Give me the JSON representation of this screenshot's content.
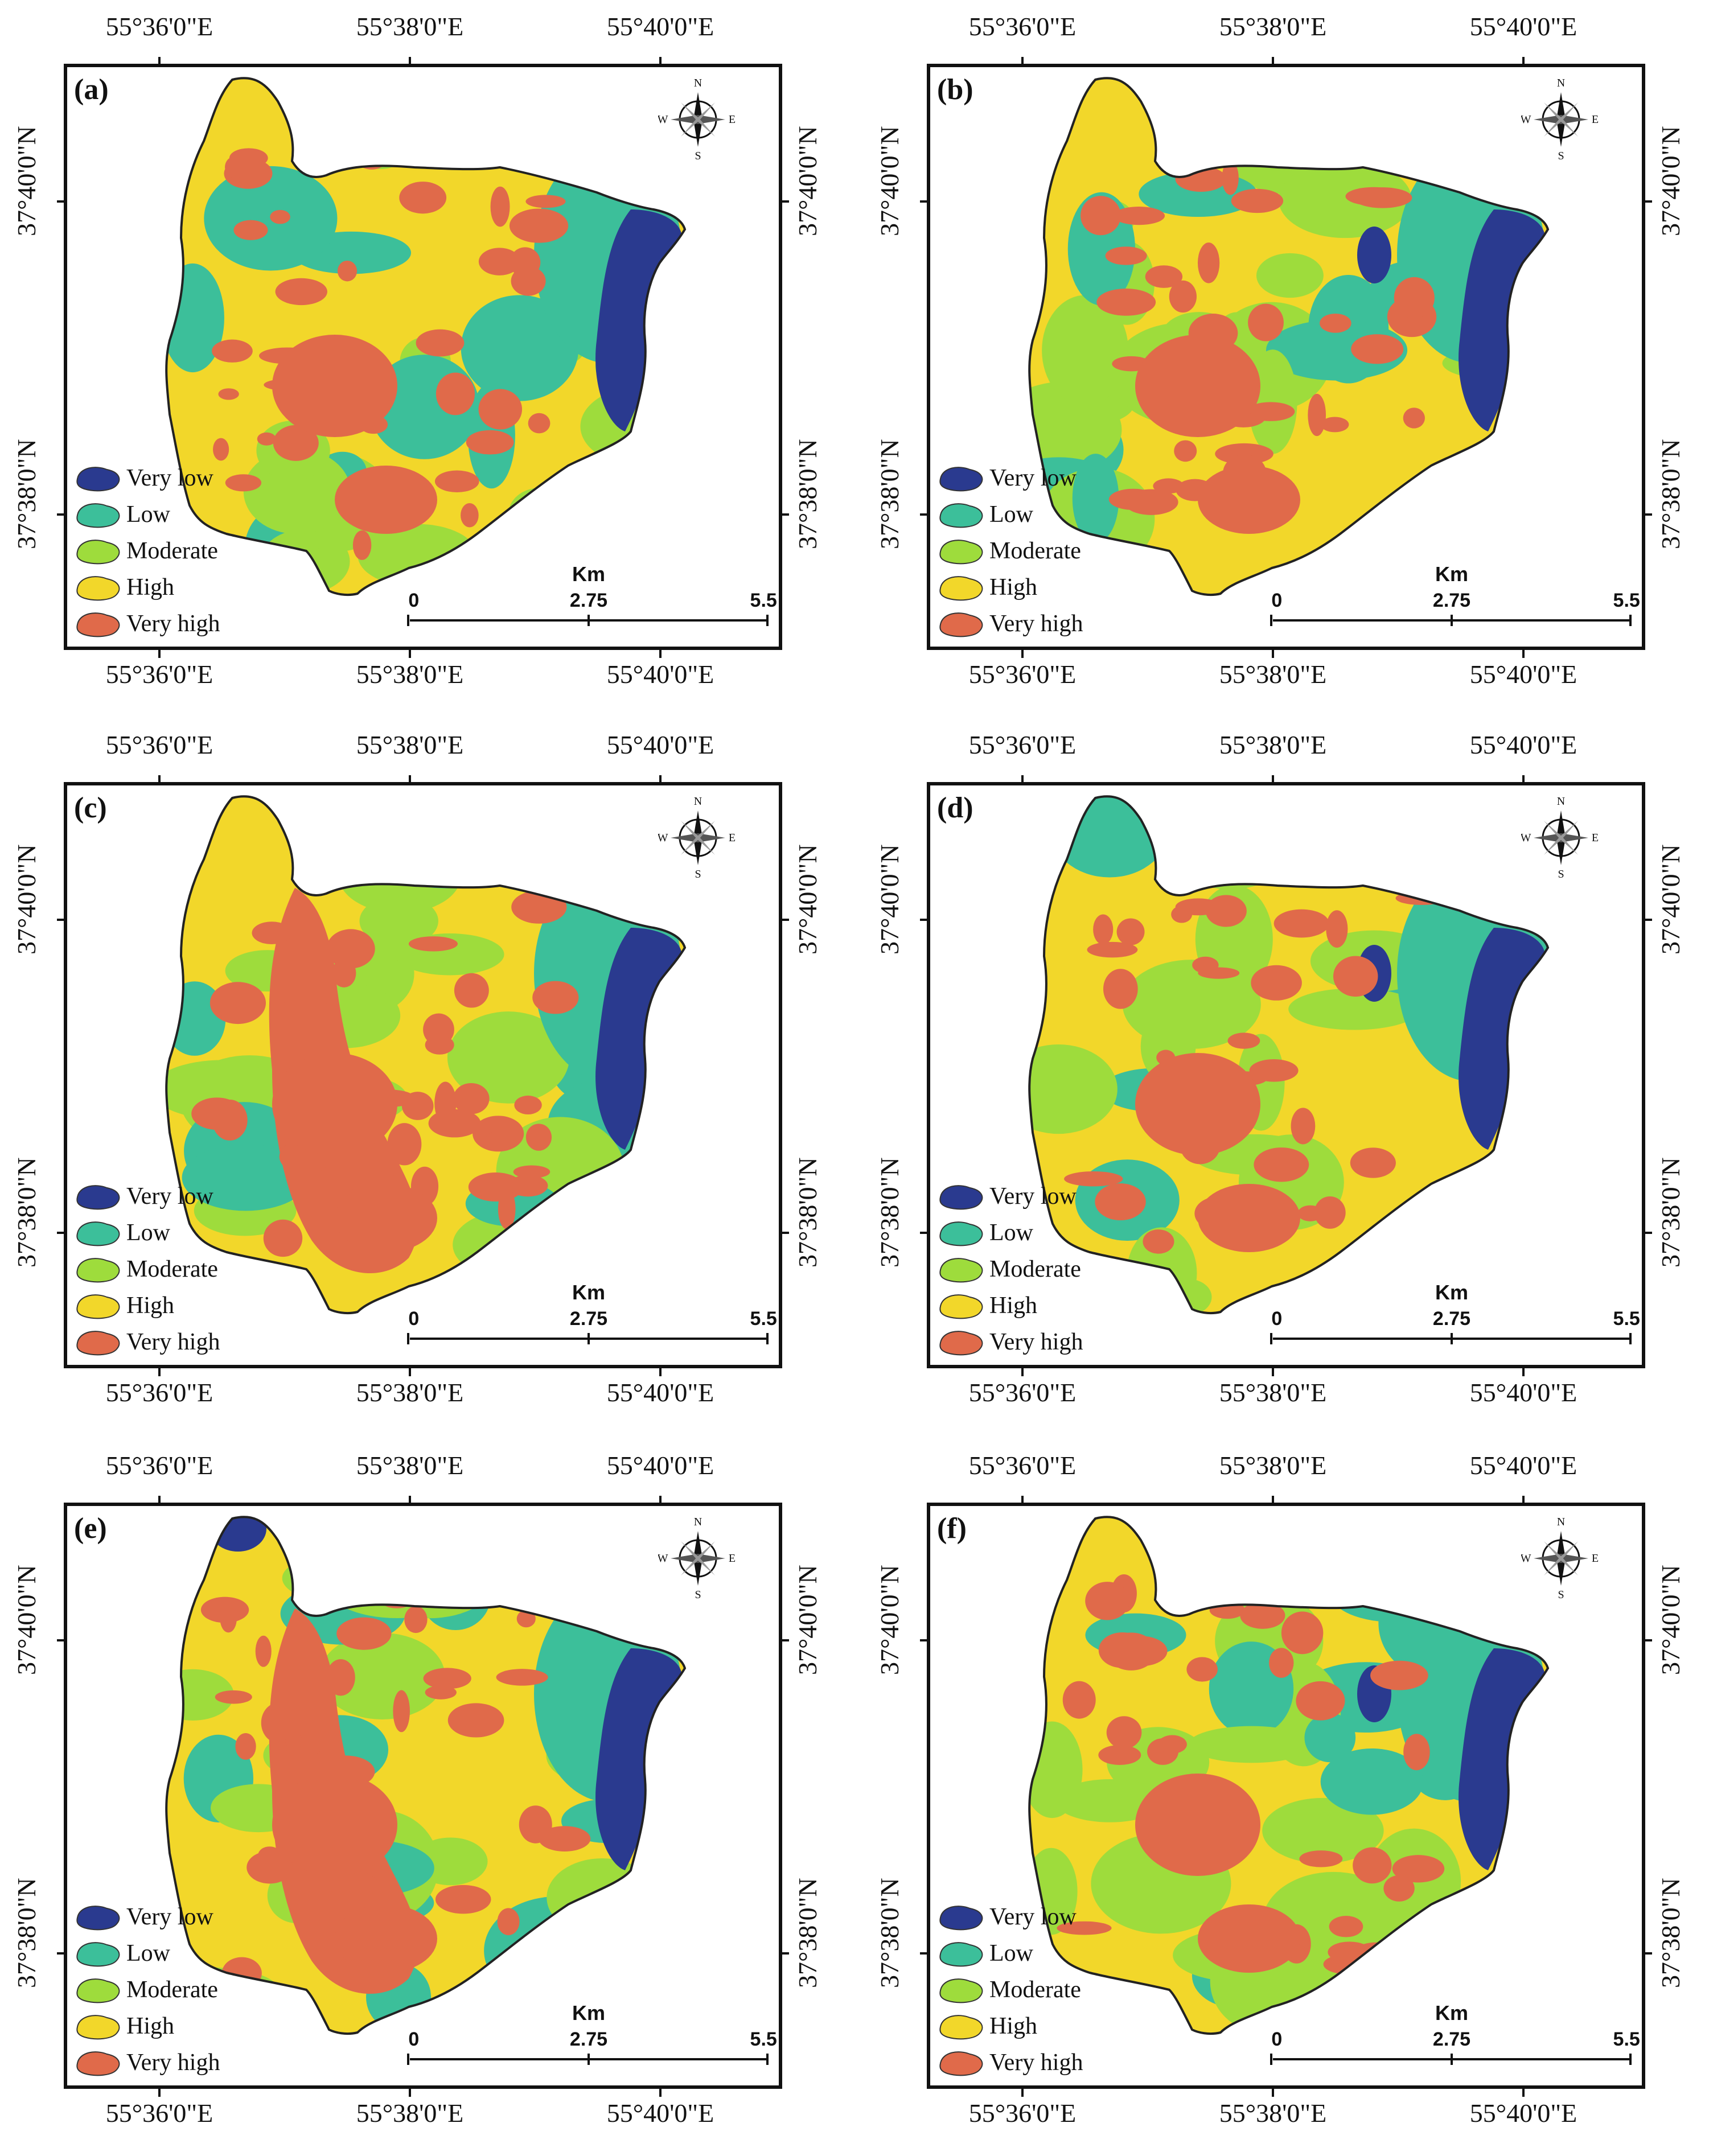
{
  "colors": {
    "very_low": "#2a3a8f",
    "low": "#3cbf9a",
    "moderate": "#9edc3c",
    "high": "#f2d72a",
    "very_high": "#e06a4a",
    "frame": "#111111"
  },
  "coordinates": {
    "lon_1": "55°36'0\"E",
    "lon_2": "55°38'0\"E",
    "lon_3": "55°40'0\"E",
    "lat_1": "37°40'0\"N",
    "lat_2": "37°38'0\"N"
  },
  "legend": {
    "very_low": "Very low",
    "low": "Low",
    "moderate": "Moderate",
    "high": "High",
    "very_high": "Very high"
  },
  "scale_bar": {
    "unit": "Km",
    "t0": "0",
    "t1": "2.75",
    "t2": "5.5"
  },
  "compass": {
    "n": "N",
    "s": "S",
    "e": "E",
    "w": "W"
  },
  "panels": [
    {
      "label": "(a)"
    },
    {
      "label": "(b)"
    },
    {
      "label": "(c)"
    },
    {
      "label": "(d)"
    },
    {
      "label": "(e)"
    },
    {
      "label": "(f)"
    }
  ]
}
